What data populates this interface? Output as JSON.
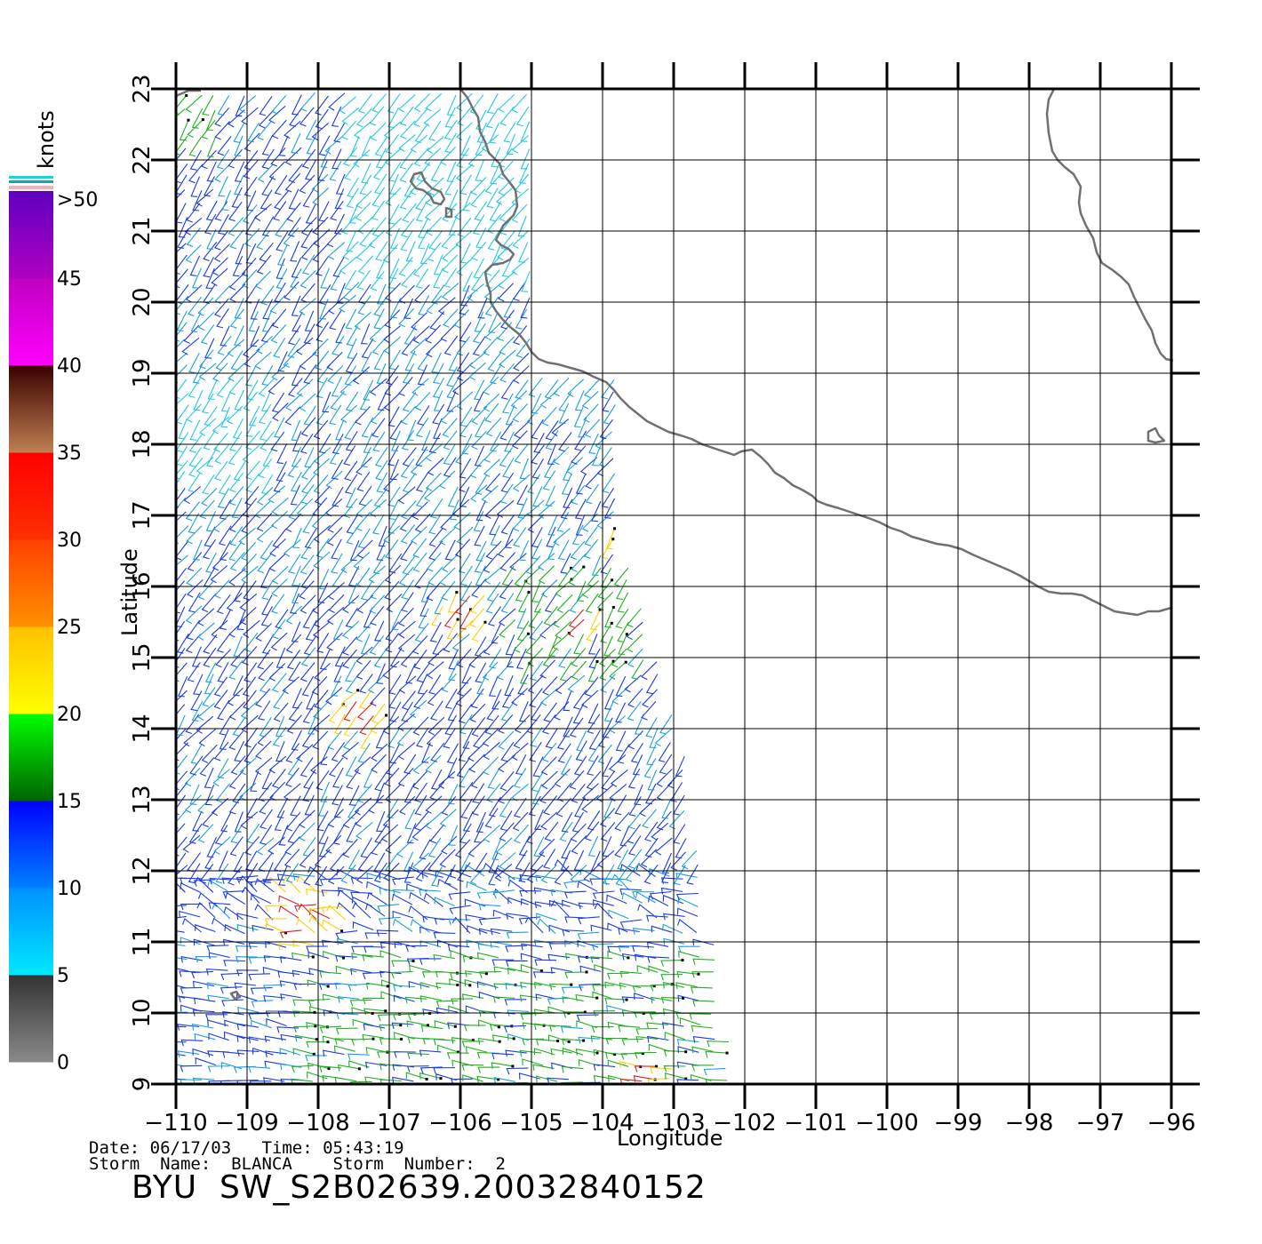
{
  "map": {
    "lon_ticks": [
      "-110",
      "-109",
      "-108",
      "-107",
      "-106",
      "-105",
      "-104",
      "-103",
      "-102",
      "-101",
      "-100",
      "-99",
      "-98",
      "-97",
      "-96"
    ],
    "lat_ticks": [
      "9",
      "10",
      "11",
      "12",
      "13",
      "14",
      "15",
      "16",
      "17",
      "18",
      "19",
      "20",
      "21",
      "22",
      "23"
    ],
    "lon_range": [
      -110,
      -96
    ],
    "lat_range": [
      9,
      23
    ],
    "xlabel": "Longitude",
    "ylabel": "Latitude",
    "grid": true,
    "coastline_color": "#707070",
    "grid_color": "#000000"
  },
  "legend": {
    "unit": "knots",
    "labels": [
      ">50",
      "45",
      "40",
      "35",
      "30",
      "25",
      "20",
      "15",
      "10",
      "5",
      "0"
    ],
    "bands": [
      {
        "from": 0,
        "to": 5,
        "colors": [
          "#8a8a8a",
          "#333333"
        ]
      },
      {
        "from": 5,
        "to": 10,
        "colors": [
          "#00e8ff",
          "#0090ff"
        ]
      },
      {
        "from": 10,
        "to": 15,
        "colors": [
          "#0080ff",
          "#0000ff"
        ]
      },
      {
        "from": 15,
        "to": 20,
        "colors": [
          "#006400",
          "#00ff00"
        ]
      },
      {
        "from": 20,
        "to": 25,
        "colors": [
          "#ffff00",
          "#ffc000"
        ]
      },
      {
        "from": 25,
        "to": 30,
        "colors": [
          "#ff9000",
          "#ff4000"
        ]
      },
      {
        "from": 30,
        "to": 35,
        "colors": [
          "#ff3000",
          "#ff0000"
        ]
      },
      {
        "from": 35,
        "to": 40,
        "colors": [
          "#c08050",
          "#3a0000"
        ]
      },
      {
        "from": 40,
        "to": 45,
        "colors": [
          "#ff00ff",
          "#c000c0"
        ]
      },
      {
        "from": 45,
        "to": 50,
        "colors": [
          "#b000c0",
          "#6000c0"
        ]
      }
    ]
  },
  "meta": {
    "line1": "Date: 06/17/03   Time: 05:43:19",
    "line2": "Storm  Name:  BLANCA    Storm  Number:  2"
  },
  "title": "BYU  SW_S2B02639.20032840152",
  "wind_colors": {
    "light_cyan": "#22c8e8",
    "cyan_blue": "#1aa0e0",
    "blue": "#1a3ae8",
    "green": "#20b020",
    "yellow": "#ffd000",
    "red": "#e02020",
    "rain_flag": "#000000"
  }
}
